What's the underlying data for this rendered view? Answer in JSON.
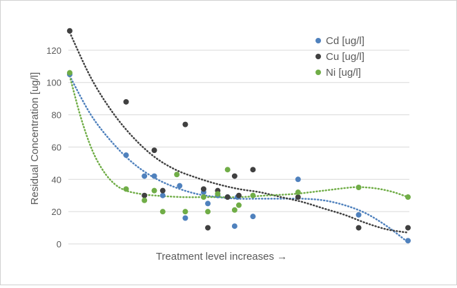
{
  "chart_data": {
    "type": "scatter",
    "title": "",
    "xlabel": "Treatment level increases →",
    "ylabel": "Residual Concentration [ug/l]",
    "ylim": [
      0,
      140
    ],
    "yticks": [
      0,
      20,
      40,
      60,
      80,
      100,
      120
    ],
    "xlim": [
      0,
      24
    ],
    "x_tick_labels": false,
    "grid": "horizontal",
    "legend_position": "right",
    "trendline": "polynomial (dotted)",
    "series": [
      {
        "name": "Cd [ug/l]",
        "color": "#4f81bd",
        "points": [
          [
            0,
            105
          ],
          [
            4,
            55
          ],
          [
            5.3,
            42
          ],
          [
            6,
            42
          ],
          [
            6.6,
            30
          ],
          [
            7.8,
            36
          ],
          [
            8.2,
            16
          ],
          [
            9.5,
            32
          ],
          [
            9.8,
            25
          ],
          [
            10.5,
            30
          ],
          [
            11.2,
            29
          ],
          [
            11.7,
            11
          ],
          [
            11.9,
            29
          ],
          [
            13,
            17
          ],
          [
            16.2,
            40
          ],
          [
            20.5,
            18
          ],
          [
            24,
            2
          ]
        ]
      },
      {
        "name": "Cu [ug/l]",
        "color": "#404040",
        "points": [
          [
            0,
            132
          ],
          [
            4,
            88
          ],
          [
            5.3,
            30
          ],
          [
            6,
            58
          ],
          [
            6.6,
            33
          ],
          [
            8.2,
            74
          ],
          [
            9.5,
            34
          ],
          [
            9.8,
            10
          ],
          [
            10.5,
            33
          ],
          [
            11.2,
            29
          ],
          [
            11.7,
            42
          ],
          [
            12,
            30
          ],
          [
            13,
            46
          ],
          [
            16.2,
            29
          ],
          [
            20.5,
            10
          ],
          [
            24,
            10
          ]
        ]
      },
      {
        "name": "Ni [ug/l]",
        "color": "#70ad47",
        "points": [
          [
            0,
            106
          ],
          [
            4,
            34
          ],
          [
            5.3,
            27
          ],
          [
            6,
            33
          ],
          [
            6.6,
            20
          ],
          [
            7.6,
            43
          ],
          [
            8.2,
            20
          ],
          [
            9.5,
            29
          ],
          [
            9.8,
            20
          ],
          [
            10.5,
            31
          ],
          [
            11.2,
            46
          ],
          [
            11.7,
            21
          ],
          [
            12,
            24
          ],
          [
            13,
            30
          ],
          [
            16.2,
            32
          ],
          [
            20.5,
            35
          ],
          [
            24,
            29
          ]
        ]
      }
    ],
    "trendlines": [
      {
        "series": "Cd [ug/l]",
        "points": [
          [
            0,
            104
          ],
          [
            1.5,
            80
          ],
          [
            3,
            63
          ],
          [
            4.5,
            50
          ],
          [
            6,
            41
          ],
          [
            7.5,
            35
          ],
          [
            9,
            31
          ],
          [
            10.5,
            29
          ],
          [
            12,
            28
          ],
          [
            13.5,
            28
          ],
          [
            15,
            28
          ],
          [
            16.5,
            28
          ],
          [
            18,
            27
          ],
          [
            19.5,
            24
          ],
          [
            21,
            19
          ],
          [
            22.5,
            11
          ],
          [
            24,
            1
          ]
        ]
      },
      {
        "series": "Cu [ug/l]",
        "points": [
          [
            0,
            131
          ],
          [
            1.5,
            103
          ],
          [
            3,
            82
          ],
          [
            4.5,
            66
          ],
          [
            6,
            54
          ],
          [
            7.5,
            46
          ],
          [
            9,
            41
          ],
          [
            10.5,
            37
          ],
          [
            12,
            34
          ],
          [
            13.5,
            32
          ],
          [
            15,
            29
          ],
          [
            16.5,
            26
          ],
          [
            18,
            22
          ],
          [
            19.5,
            18
          ],
          [
            21,
            13
          ],
          [
            22.5,
            9
          ],
          [
            24,
            7
          ]
        ]
      },
      {
        "series": "Ni [ug/l]",
        "points": [
          [
            0,
            104
          ],
          [
            0.8,
            78
          ],
          [
            1.6,
            58
          ],
          [
            2.4,
            45
          ],
          [
            3.2,
            37
          ],
          [
            4,
            33
          ],
          [
            5,
            31
          ],
          [
            6,
            30
          ],
          [
            8,
            29
          ],
          [
            10,
            29
          ],
          [
            12,
            29
          ],
          [
            14,
            30
          ],
          [
            16,
            31
          ],
          [
            18,
            33
          ],
          [
            20,
            35
          ],
          [
            21,
            35
          ],
          [
            22,
            34
          ],
          [
            23,
            32
          ],
          [
            24,
            29
          ]
        ]
      }
    ]
  }
}
